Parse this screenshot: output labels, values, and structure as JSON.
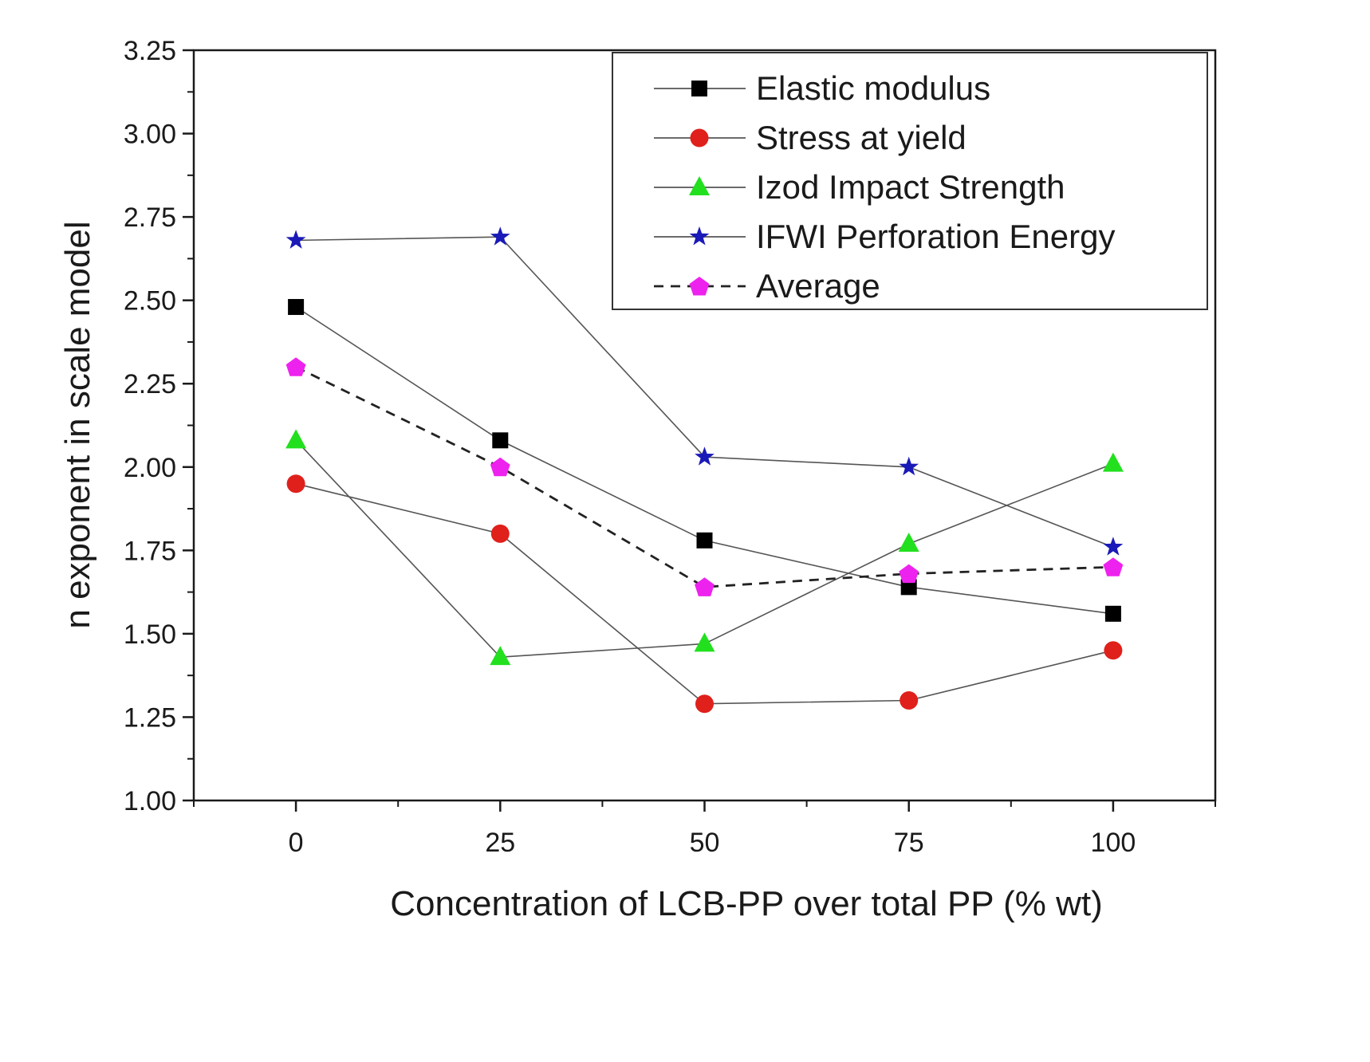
{
  "chart_data": {
    "type": "line",
    "title": "",
    "xlabel": "Concentration of LCB-PP over total PP (% wt)",
    "ylabel": "n exponent in scale model",
    "xlim": [
      -12.5,
      112.5
    ],
    "ylim": [
      1.0,
      3.25
    ],
    "x": [
      0,
      25,
      50,
      75,
      100
    ],
    "xticks": [
      0,
      25,
      50,
      75,
      100
    ],
    "xtick_labels": [
      "0",
      "25",
      "50",
      "75",
      "100"
    ],
    "yticks": [
      1.0,
      1.25,
      1.5,
      1.75,
      2.0,
      2.25,
      2.5,
      2.75,
      3.0,
      3.25
    ],
    "ytick_labels": [
      "1.00",
      "1.25",
      "1.50",
      "1.75",
      "2.00",
      "2.25",
      "2.50",
      "2.75",
      "3.00",
      "3.25"
    ],
    "grid": false,
    "legend_position": "top-right",
    "series": [
      {
        "name": "Elastic modulus",
        "values": [
          2.48,
          2.08,
          1.78,
          1.64,
          1.56
        ],
        "marker": "square",
        "color": "#000000",
        "line_color": "#555555",
        "dash": "solid"
      },
      {
        "name": "Stress at yield",
        "values": [
          1.95,
          1.8,
          1.29,
          1.3,
          1.45
        ],
        "marker": "circle",
        "color": "#e0201b",
        "line_color": "#555555",
        "dash": "solid"
      },
      {
        "name": "Izod Impact Strength",
        "values": [
          2.08,
          1.43,
          1.47,
          1.77,
          2.01
        ],
        "marker": "triangle",
        "color": "#22e01e",
        "line_color": "#555555",
        "dash": "solid"
      },
      {
        "name": "IFWI Perforation Energy",
        "values": [
          2.68,
          2.69,
          2.03,
          2.0,
          1.76
        ],
        "marker": "star",
        "color": "#1a1ab8",
        "line_color": "#555555",
        "dash": "solid"
      },
      {
        "name": "Average",
        "values": [
          2.3,
          2.0,
          1.64,
          1.68,
          1.7
        ],
        "marker": "pentagon",
        "color": "#ee22ee",
        "line_color": "#222222",
        "dash": "dashed"
      }
    ]
  }
}
